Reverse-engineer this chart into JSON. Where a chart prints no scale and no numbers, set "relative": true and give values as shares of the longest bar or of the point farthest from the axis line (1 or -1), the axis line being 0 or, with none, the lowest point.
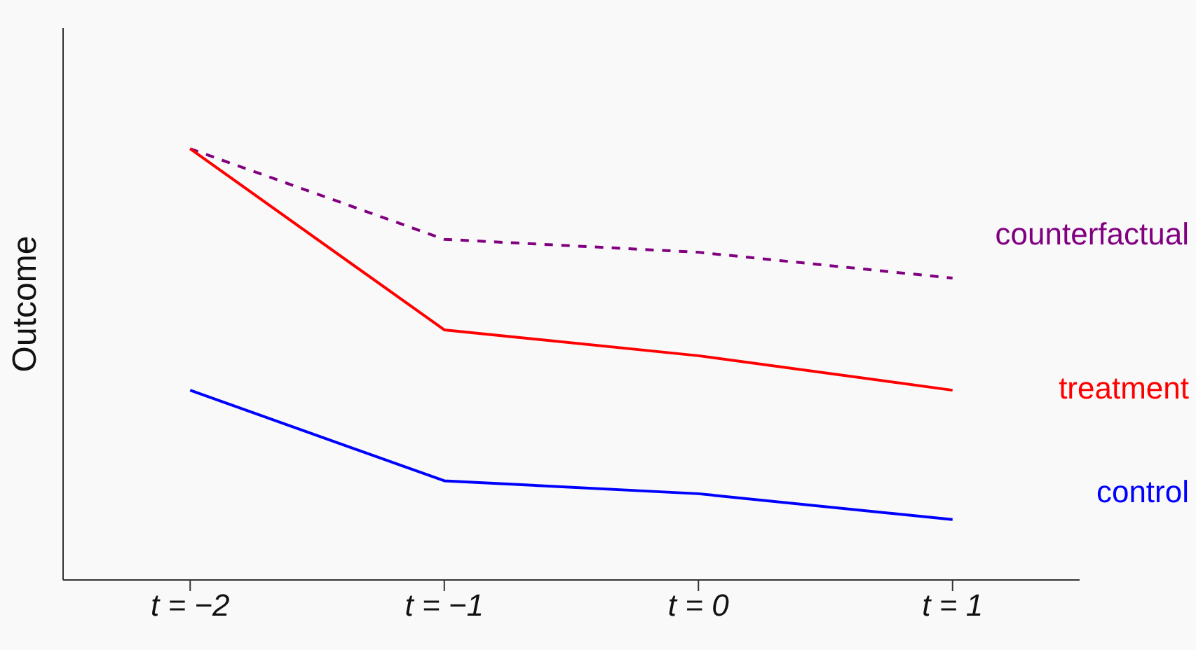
{
  "chart_data": {
    "type": "line",
    "relative": true,
    "ylabel": "Outcome",
    "categories": [
      "t = −2",
      "t = −1",
      "t = 0",
      "t = 1"
    ],
    "legend": false,
    "grid": false,
    "series": [
      {
        "name": "counterfactual",
        "color": "#800080",
        "line_style": "dashed",
        "values": [
          1,
          0.79,
          0.76,
          0.7
        ]
      },
      {
        "name": "treatment",
        "color": "#ff0000",
        "line_style": "solid",
        "values": [
          1,
          0.58,
          0.52,
          0.44
        ]
      },
      {
        "name": "control",
        "color": "#0000ff",
        "line_style": "solid",
        "values": [
          0.44,
          0.23,
          0.2,
          0.14
        ]
      }
    ]
  }
}
